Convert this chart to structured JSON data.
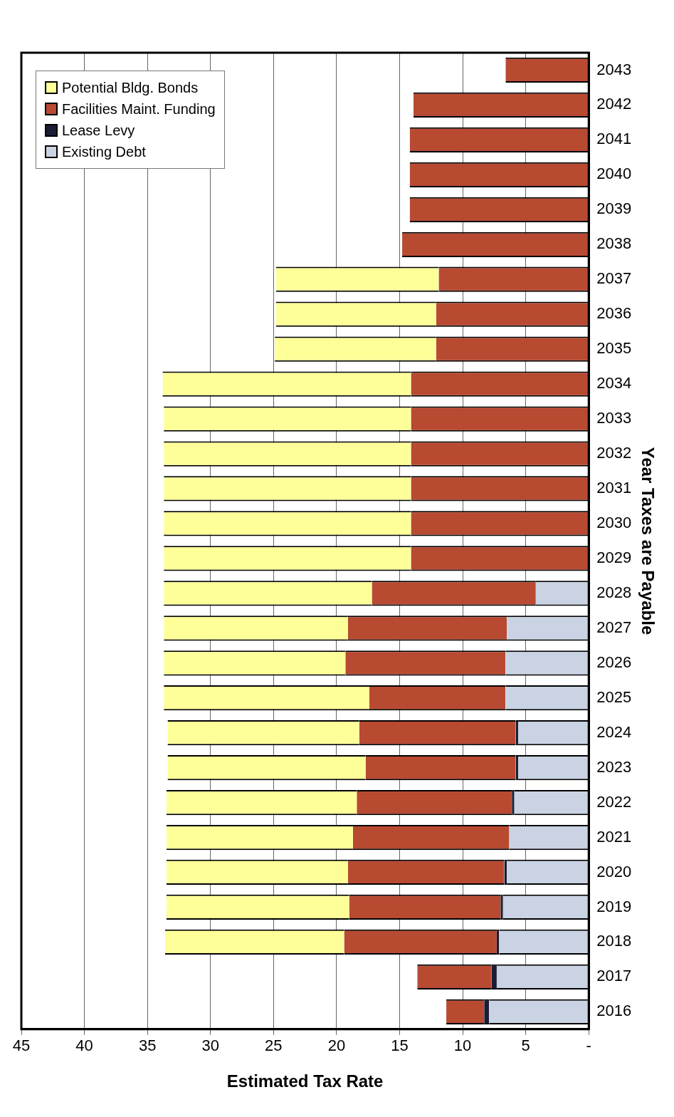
{
  "chart_data": {
    "type": "bar",
    "stacked": true,
    "orientation": "horizontal",
    "xlabel": "Estimated Tax Rate",
    "ylabel": "Year Taxes are Payable",
    "categories": [
      "2043",
      "2042",
      "2041",
      "2040",
      "2039",
      "2038",
      "2037",
      "2036",
      "2035",
      "2034",
      "2033",
      "2032",
      "2031",
      "2030",
      "2029",
      "2028",
      "2027",
      "2026",
      "2025",
      "2024",
      "2023",
      "2022",
      "2021",
      "2020",
      "2019",
      "2018",
      "2017",
      "2016"
    ],
    "series": [
      {
        "name": "Existing Debt",
        "color": "#c9d3e3",
        "values": [
          null,
          null,
          null,
          null,
          null,
          null,
          null,
          null,
          null,
          null,
          null,
          null,
          null,
          null,
          null,
          4.2,
          6.5,
          6.6,
          6.6,
          5.6,
          5.6,
          5.9,
          6.3,
          6.5,
          6.8,
          7.1,
          7.3,
          7.9
        ]
      },
      {
        "name": "Lease Levy",
        "color": "#1c1c36",
        "values": [
          null,
          null,
          null,
          null,
          null,
          null,
          null,
          null,
          null,
          null,
          null,
          null,
          null,
          null,
          null,
          null,
          null,
          null,
          null,
          0.2,
          0.2,
          0.2,
          null,
          0.2,
          0.2,
          0.2,
          0.4,
          0.4
        ]
      },
      {
        "name": "Facilities Maint. Funding",
        "color": "#b84a32",
        "values": [
          6.6,
          13.9,
          14.2,
          14.2,
          14.2,
          14.8,
          11.9,
          12.1,
          12.1,
          14.1,
          14.1,
          14.1,
          14.1,
          14.1,
          14.1,
          13.0,
          12.6,
          12.7,
          10.8,
          12.4,
          11.9,
          12.3,
          12.4,
          12.4,
          12.0,
          12.1,
          5.9,
          3.0
        ]
      },
      {
        "name": "Potential Bldg. Bonds",
        "color": "#ffff99",
        "values": [
          null,
          null,
          null,
          null,
          null,
          null,
          12.9,
          12.7,
          12.8,
          19.7,
          19.6,
          19.6,
          19.6,
          19.6,
          19.6,
          16.5,
          14.6,
          14.4,
          16.3,
          15.2,
          15.7,
          15.1,
          14.8,
          14.4,
          14.5,
          14.2,
          null,
          null
        ]
      }
    ],
    "xlim": [
      45,
      0
    ],
    "xticks": [
      45,
      40,
      35,
      30,
      25,
      20,
      15,
      10,
      5,
      {
        "value": 0,
        "label": "-"
      }
    ],
    "grid": "x",
    "legend": "top left"
  }
}
